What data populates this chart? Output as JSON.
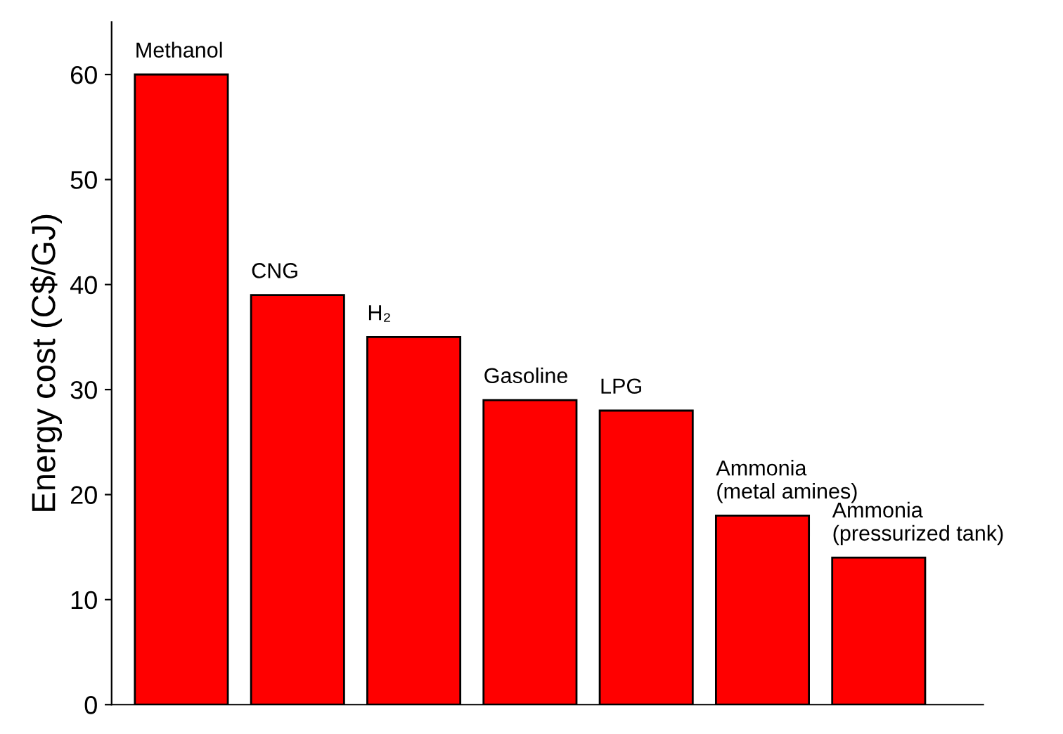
{
  "chart_data": {
    "type": "bar",
    "ylabel": "Energy cost (C$/GJ)",
    "categories": [
      "Methanol",
      "CNG",
      "H₂",
      "Gasoline",
      "LPG",
      "Ammonia\n(metal amines)",
      "Ammonia\n(pressurized tank)"
    ],
    "values": [
      60,
      39,
      35,
      29,
      28,
      18,
      14
    ],
    "color": "#ff0000",
    "ylim": [
      0,
      65
    ],
    "yticks": [
      0,
      10,
      20,
      30,
      40,
      50,
      60
    ],
    "grid": false,
    "tick_labels": "y"
  }
}
